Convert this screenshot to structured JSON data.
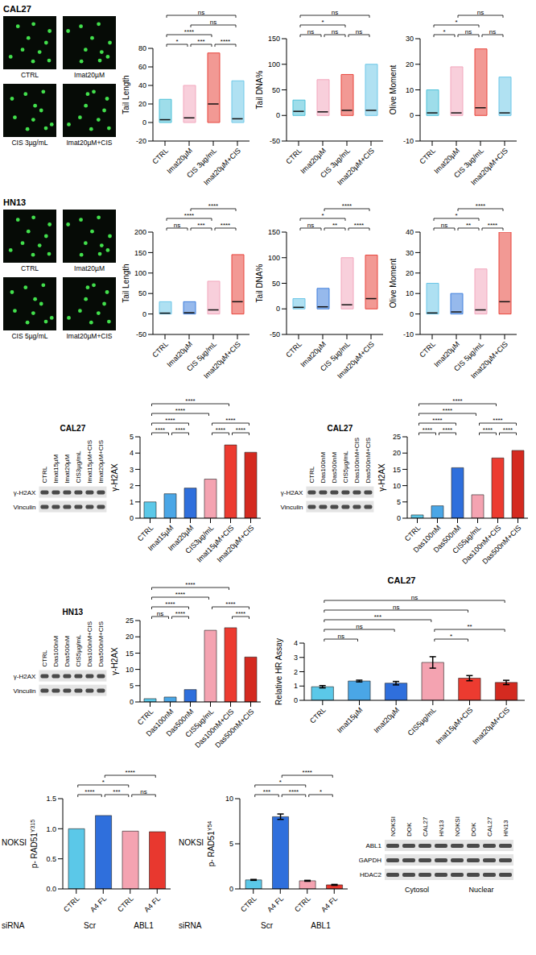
{
  "chart_data": [
    {
      "type": "violin",
      "ylabel": "Tail Length",
      "categories": [
        "CTRL",
        "Imat20µM",
        "CIS 3µg/mL",
        "Imat20µM+CIS"
      ],
      "min": [
        0,
        0,
        0,
        0
      ],
      "median": [
        3,
        5,
        20,
        4
      ],
      "max": [
        25,
        40,
        75,
        45
      ],
      "colors": [
        "#4fc1d9",
        "#f2a7bd",
        "#e8453c",
        "#6fc8e8"
      ],
      "ylim": [
        -20,
        80
      ],
      "yticks": [
        -20,
        0,
        20,
        40,
        60,
        80
      ],
      "comparisons": [
        {
          "pair": [
            0,
            1
          ],
          "label": "*"
        },
        {
          "pair": [
            1,
            2
          ],
          "label": "***"
        },
        {
          "pair": [
            2,
            3
          ],
          "label": "****"
        },
        {
          "pair": [
            0,
            2
          ],
          "label": "****"
        },
        {
          "pair": [
            1,
            3
          ],
          "label": "ns"
        },
        {
          "pair": [
            0,
            3
          ],
          "label": "ns"
        }
      ]
    },
    {
      "type": "violin",
      "ylabel": "Tail DNA%",
      "categories": [
        "CTRL",
        "Imat20µM",
        "CIS 3µg/mL",
        "Imat20µM+CIS"
      ],
      "min": [
        0,
        0,
        0,
        0
      ],
      "median": [
        8,
        7,
        10,
        10
      ],
      "max": [
        30,
        70,
        80,
        100
      ],
      "colors": [
        "#4fc1d9",
        "#f2a7bd",
        "#e8453c",
        "#6fc8e8"
      ],
      "ylim": [
        -50,
        150
      ],
      "yticks": [
        -50,
        0,
        50,
        100,
        150
      ],
      "comparisons": [
        {
          "pair": [
            0,
            1
          ],
          "label": "ns"
        },
        {
          "pair": [
            1,
            2
          ],
          "label": "ns"
        },
        {
          "pair": [
            2,
            3
          ],
          "label": "ns"
        },
        {
          "pair": [
            0,
            2
          ],
          "label": "*"
        },
        {
          "pair": [
            0,
            3
          ],
          "label": "ns"
        }
      ]
    },
    {
      "type": "violin",
      "ylabel": "Olive Moment",
      "categories": [
        "CTRL",
        "Imat20µM",
        "CIS 3µg/mL",
        "Imat20µM+CIS"
      ],
      "min": [
        0,
        0,
        0,
        0
      ],
      "median": [
        1,
        1,
        3,
        1
      ],
      "max": [
        10,
        19,
        26,
        15
      ],
      "colors": [
        "#4fc1d9",
        "#f2a7bd",
        "#e8453c",
        "#6fc8e8"
      ],
      "ylim": [
        -10,
        30
      ],
      "yticks": [
        -10,
        0,
        10,
        20,
        30
      ],
      "comparisons": [
        {
          "pair": [
            0,
            1
          ],
          "label": "*"
        },
        {
          "pair": [
            1,
            2
          ],
          "label": "ns"
        },
        {
          "pair": [
            2,
            3
          ],
          "label": "ns"
        },
        {
          "pair": [
            0,
            2
          ],
          "label": "*"
        },
        {
          "pair": [
            1,
            3
          ],
          "label": "ns"
        }
      ]
    },
    {
      "type": "violin",
      "ylabel": "Tail Length",
      "categories": [
        "CTRL",
        "Imat20µM",
        "CIS 5µg/mL",
        "Imat20µM+CIS"
      ],
      "min": [
        0,
        0,
        0,
        0
      ],
      "median": [
        2,
        3,
        10,
        30
      ],
      "max": [
        30,
        30,
        80,
        145
      ],
      "colors": [
        "#6cc6e8",
        "#3f7fdc",
        "#f2a7bd",
        "#e8453c"
      ],
      "ylim": [
        -50,
        200
      ],
      "yticks": [
        -50,
        0,
        50,
        100,
        150,
        200
      ],
      "comparisons": [
        {
          "pair": [
            0,
            1
          ],
          "label": "ns"
        },
        {
          "pair": [
            1,
            2
          ],
          "label": "***"
        },
        {
          "pair": [
            2,
            3
          ],
          "label": "****"
        },
        {
          "pair": [
            0,
            2
          ],
          "label": "****"
        },
        {
          "pair": [
            1,
            3
          ],
          "label": "****"
        }
      ]
    },
    {
      "type": "violin",
      "ylabel": "Tail DNA%",
      "categories": [
        "CTRL",
        "Imat20µM",
        "CIS 5µg/mL",
        "Imat20µM+CIS"
      ],
      "min": [
        0,
        0,
        0,
        0
      ],
      "median": [
        3,
        4,
        8,
        20
      ],
      "max": [
        20,
        40,
        100,
        105
      ],
      "colors": [
        "#6cc6e8",
        "#3f7fdc",
        "#f2a7bd",
        "#e8453c"
      ],
      "ylim": [
        -50,
        150
      ],
      "yticks": [
        -50,
        0,
        50,
        100,
        150
      ],
      "comparisons": [
        {
          "pair": [
            0,
            1
          ],
          "label": "ns"
        },
        {
          "pair": [
            1,
            2
          ],
          "label": "**"
        },
        {
          "pair": [
            2,
            3
          ],
          "label": "****"
        },
        {
          "pair": [
            0,
            2
          ],
          "label": "*"
        },
        {
          "pair": [
            1,
            3
          ],
          "label": "****"
        }
      ]
    },
    {
      "type": "violin",
      "ylabel": "Olive Moment",
      "categories": [
        "CTRL",
        "Imat20µM",
        "CIS 5µg/mL",
        "Imat20µM+CIS"
      ],
      "min": [
        0,
        0,
        0,
        0
      ],
      "median": [
        0.5,
        1,
        2,
        6
      ],
      "max": [
        15,
        10,
        22,
        40
      ],
      "colors": [
        "#6cc6e8",
        "#3f7fdc",
        "#f2a7bd",
        "#e8453c"
      ],
      "ylim": [
        -10,
        40
      ],
      "yticks": [
        -10,
        0,
        10,
        20,
        30,
        40
      ],
      "comparisons": [
        {
          "pair": [
            0,
            1
          ],
          "label": "ns"
        },
        {
          "pair": [
            1,
            2
          ],
          "label": "**"
        },
        {
          "pair": [
            2,
            3
          ],
          "label": "****"
        },
        {
          "pair": [
            0,
            2
          ],
          "label": "*"
        },
        {
          "pair": [
            1,
            3
          ],
          "label": "****"
        }
      ]
    },
    {
      "type": "bar",
      "ylabel": "γ-H2AX",
      "categories": [
        "CTRL",
        "Imat15µM",
        "Imat20µM",
        "CIS3µg/mL",
        "Imat15µM+CIS",
        "Imat20µM+CIS"
      ],
      "values": [
        1,
        1.5,
        1.85,
        2.4,
        4.5,
        4.05
      ],
      "colors": [
        "#5bc8e8",
        "#4aa6e6",
        "#2f6fdc",
        "#f4a3b1",
        "#ec3b30",
        "#d42a20"
      ],
      "ylim": [
        0,
        5
      ],
      "yticks": [
        0,
        1,
        2,
        3,
        4,
        5
      ],
      "comparisons": [
        {
          "pair": [
            0,
            1
          ],
          "label": "****"
        },
        {
          "pair": [
            1,
            2
          ],
          "label": "****"
        },
        {
          "pair": [
            3,
            4
          ],
          "label": "****"
        },
        {
          "pair": [
            4,
            5
          ],
          "label": "****"
        },
        {
          "pair": [
            0,
            2
          ],
          "label": "****"
        },
        {
          "pair": [
            3,
            5
          ],
          "label": "****"
        },
        {
          "pair": [
            0,
            3
          ],
          "label": "****"
        },
        {
          "pair": [
            0,
            4
          ],
          "label": "****"
        }
      ]
    },
    {
      "type": "bar",
      "ylabel": "γ-H2AX",
      "categories": [
        "CTRL",
        "Das100nM",
        "Das500nM",
        "CIS5µg/mL",
        "Das100nM+CIS",
        "Das500nM+CIS"
      ],
      "values": [
        1,
        3.8,
        15.5,
        7.2,
        18.5,
        20.8
      ],
      "colors": [
        "#5bc8e8",
        "#4aa6e6",
        "#2f6fdc",
        "#f4a3b1",
        "#ec3b30",
        "#d42a20"
      ],
      "ylim": [
        0,
        25
      ],
      "yticks": [
        0,
        5,
        10,
        15,
        20,
        25
      ],
      "comparisons": [
        {
          "pair": [
            0,
            1
          ],
          "label": "****"
        },
        {
          "pair": [
            1,
            2
          ],
          "label": "****"
        },
        {
          "pair": [
            3,
            4
          ],
          "label": "****"
        },
        {
          "pair": [
            4,
            5
          ],
          "label": "****"
        },
        {
          "pair": [
            0,
            2
          ],
          "label": "****"
        },
        {
          "pair": [
            3,
            5
          ],
          "label": "****"
        },
        {
          "pair": [
            0,
            3
          ],
          "label": "****"
        },
        {
          "pair": [
            0,
            4
          ],
          "label": "****"
        }
      ]
    },
    {
      "type": "bar",
      "ylabel": "γ-H2AX",
      "categories": [
        "CTRL",
        "Das100nM",
        "Das500nM",
        "CIS5µg/mL",
        "Das100nM+CIS",
        "Das500nM+CIS"
      ],
      "values": [
        1,
        1.5,
        3.8,
        22,
        22.8,
        13.8
      ],
      "colors": [
        "#5bc8e8",
        "#4aa6e6",
        "#2f6fdc",
        "#f4a3b1",
        "#ec3b30",
        "#d42a20"
      ],
      "ylim": [
        0,
        25
      ],
      "yticks": [
        0,
        5,
        10,
        15,
        20,
        25
      ],
      "comparisons": [
        {
          "pair": [
            0,
            1
          ],
          "label": "ns"
        },
        {
          "pair": [
            1,
            2
          ],
          "label": "****"
        },
        {
          "pair": [
            4,
            5
          ],
          "label": "****"
        },
        {
          "pair": [
            0,
            2
          ],
          "label": "****"
        },
        {
          "pair": [
            3,
            5
          ],
          "label": "****"
        },
        {
          "pair": [
            0,
            3
          ],
          "label": "****"
        },
        {
          "pair": [
            0,
            4
          ],
          "label": "****"
        }
      ]
    },
    {
      "type": "bar",
      "title": "CAL27",
      "ylabel": "Relative HR Assay",
      "categories": [
        "CTRL",
        "Imat15µM",
        "Imat20µM",
        "CIS5µg/mL",
        "Imat15µM+CIS",
        "Imat20µM+CIS"
      ],
      "values": [
        0.95,
        1.35,
        1.2,
        2.65,
        1.55,
        1.25
      ],
      "errors": [
        0.08,
        0.06,
        0.12,
        0.4,
        0.18,
        0.15
      ],
      "colors": [
        "#5bc8e8",
        "#4aa6e6",
        "#2f6fdc",
        "#f4a3b1",
        "#ec3b30",
        "#d42a20"
      ],
      "ylim": [
        0,
        4
      ],
      "yticks": [
        0,
        1,
        2,
        3,
        4
      ],
      "comparisons": [
        {
          "pair": [
            3,
            4
          ],
          "label": "*"
        },
        {
          "pair": [
            0,
            1
          ],
          "label": "ns"
        },
        {
          "pair": [
            0,
            2
          ],
          "label": "ns"
        },
        {
          "pair": [
            3,
            5
          ],
          "label": "**"
        },
        {
          "pair": [
            0,
            3
          ],
          "label": "***"
        },
        {
          "pair": [
            0,
            4
          ],
          "label": "ns"
        },
        {
          "pair": [
            0,
            5
          ],
          "label": "ns"
        }
      ]
    },
    {
      "type": "bar",
      "ylabel": "p- RAD51",
      "ylabel_superscript": "Y315",
      "cell_line": "NOKSI",
      "group_title": "siRNA",
      "groups": [
        "Scr",
        "Scr",
        "ABL1",
        "ABL1"
      ],
      "categories": [
        "CTRL",
        "A4 FL",
        "CTRL",
        "A4 FL"
      ],
      "values": [
        1.0,
        1.22,
        0.96,
        0.95
      ],
      "colors": [
        "#5bc8e8",
        "#2f6fdc",
        "#f4a3b1",
        "#e8382f"
      ],
      "ylim": [
        0,
        1.5
      ],
      "yticks": [
        {
          "value": 0,
          "label": "0.0"
        },
        0.5,
        {
          "value": 1,
          "label": "1.0"
        },
        1.5
      ],
      "comparisons": [
        {
          "pair": [
            0,
            1
          ],
          "label": "****"
        },
        {
          "pair": [
            1,
            2
          ],
          "label": "***"
        },
        {
          "pair": [
            2,
            3
          ],
          "label": "ns"
        },
        {
          "pair": [
            0,
            2
          ],
          "label": "*"
        },
        {
          "pair": [
            1,
            3
          ],
          "label": "****"
        }
      ]
    },
    {
      "type": "bar",
      "ylabel": "p- RAD51",
      "ylabel_superscript": "Y54",
      "cell_line": "NOKSI",
      "group_title": "siRNA",
      "groups": [
        "Scr",
        "Scr",
        "ABL1",
        "ABL1"
      ],
      "categories": [
        "CTRL",
        "A4 FL",
        "CTRL",
        "A4 FL"
      ],
      "values": [
        1.0,
        8.0,
        0.9,
        0.45
      ],
      "errors": [
        0.05,
        0.3,
        0.05,
        0.05
      ],
      "colors": [
        "#5bc8e8",
        "#2f6fdc",
        "#f4a3b1",
        "#e8382f"
      ],
      "ylim": [
        0,
        10
      ],
      "yticks": [
        0,
        5,
        10
      ],
      "comparisons": [
        {
          "pair": [
            0,
            1
          ],
          "label": "***"
        },
        {
          "pair": [
            1,
            2
          ],
          "label": "****"
        },
        {
          "pair": [
            2,
            3
          ],
          "label": "*"
        },
        {
          "pair": [
            0,
            2
          ],
          "label": "*"
        },
        {
          "pair": [
            1,
            3
          ],
          "label": "****"
        }
      ]
    }
  ],
  "micrographs": [
    {
      "cell_line": "CAL27",
      "labels": [
        "CTRL",
        "Imat20µM",
        "CIS 3µg/mL",
        "Imat20µM+CIS"
      ]
    },
    {
      "cell_line": "HN13",
      "labels": [
        "CTRL",
        "Imat20µM",
        "CIS 5µg/mL",
        "Imat20µM+CIS"
      ]
    }
  ],
  "blots": [
    {
      "title": "CAL27",
      "lanes": [
        "CTRL",
        "Imat15µM",
        "Imat20µM",
        "CIS3µg/mL",
        "Imat15µM+CIS",
        "Imat20µM+CIS"
      ],
      "rows": [
        "γ-H2AX",
        "Vinculin"
      ]
    },
    {
      "title": "CAL27",
      "lanes": [
        "CTRL",
        "Das100nM",
        "Das500nM",
        "CIS5µg/mL",
        "Das100nM+CIS",
        "Das500nM+CIS"
      ],
      "rows": [
        "γ-H2AX",
        "Vinculin"
      ]
    },
    {
      "title": "HN13",
      "lanes": [
        "CTRL",
        "Das100nM",
        "Das500nM",
        "CIS5µg/mL",
        "Das100nM+CIS",
        "Das500nM+CIS"
      ],
      "rows": [
        "γ-H2AX",
        "Vinculin"
      ]
    },
    {
      "lanes": [
        "NOKSI",
        "DOK",
        "CAL27",
        "HN13",
        "NOKSI",
        "DOK",
        "CAL27",
        "HN13"
      ],
      "rows": [
        "ABL1",
        "GAPDH",
        "HDAC2"
      ],
      "lane_groups": [
        "Cytosol",
        "Cytosol",
        "Cytosol",
        "Cytosol",
        "Nuclear",
        "Nuclear",
        "Nuclear",
        "Nuclear"
      ]
    }
  ]
}
